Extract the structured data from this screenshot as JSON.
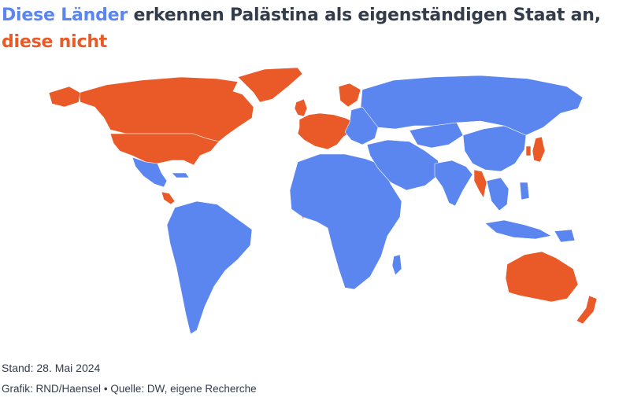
{
  "headline": {
    "recognize_phrase": "Diese Länder",
    "middle_text": " erkennen Palästina als eigenständigen Staat an, ",
    "not_phrase": "diese nicht"
  },
  "legend_colors": {
    "recognize": "#5b85ef",
    "not_recognize": "#ea5a28"
  },
  "footer": {
    "stand": "Stand: 28. Mai 2024",
    "credit_grafik": "Grafik: RND/Haensel",
    "separator": "•",
    "credit_quelle": "Quelle: DW, eigene Recherche"
  }
}
